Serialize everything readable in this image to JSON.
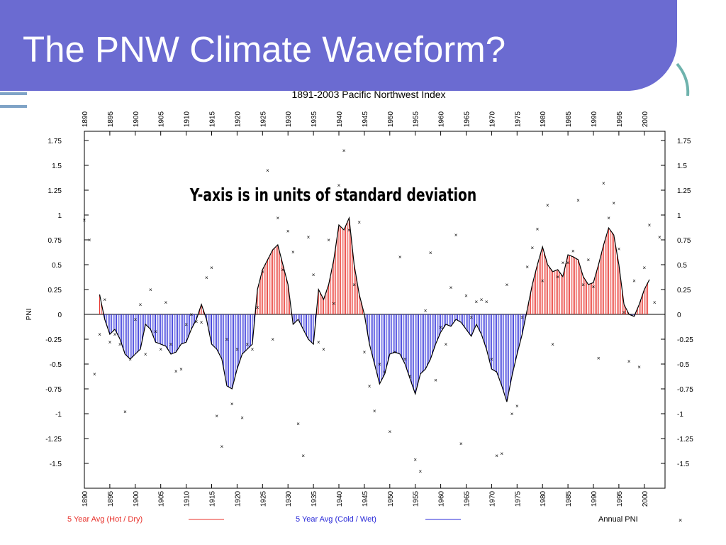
{
  "slide": {
    "title": "The PNW Climate Waveform?"
  },
  "chart_data": {
    "type": "area",
    "title": "1891-2003 Pacific Northwest Index",
    "ylabel": "PNI",
    "annotation": "Y-axis is in units of standard deviation",
    "xlim": [
      1890,
      2003
    ],
    "ylim": [
      -1.75,
      1.75
    ],
    "x_ticks": [
      1890,
      1895,
      1900,
      1905,
      1910,
      1915,
      1920,
      1925,
      1930,
      1935,
      1940,
      1945,
      1950,
      1955,
      1960,
      1965,
      1970,
      1975,
      1980,
      1985,
      1990,
      1995,
      2000
    ],
    "x_tick_labels": [
      "1890",
      "1895",
      "1900",
      "1905",
      "1910",
      "1915",
      "1920",
      "1925",
      "1930",
      "1935",
      "1940",
      "1945",
      "1950",
      "1955",
      "1960",
      "1965",
      "1970",
      "1975",
      "1980",
      "1985",
      "1990",
      "1995",
      "2000"
    ],
    "y_ticks": [
      1.75,
      1.5,
      1.25,
      1,
      0.75,
      0.5,
      0.25,
      0,
      -0.25,
      -0.5,
      -0.75,
      -1,
      -1.25,
      -1.5
    ],
    "y_tick_labels": [
      "1.75",
      "1.5",
      "1.25",
      "1",
      "0.75",
      "0.5",
      "0.25",
      "0",
      "-0.25",
      "-0.5",
      "-0.75",
      "-1",
      "-1.25",
      "-1.5"
    ],
    "legend": {
      "placement": "bottom",
      "hot_label": "5 Year Avg (Hot / Dry)",
      "cold_label": "5 Year Avg (Cold / Wet)",
      "annual_label": "Annual PNI",
      "hot_color": "#e8302a",
      "cold_color": "#2a2ad8"
    },
    "series": [
      {
        "name": "5 Year Avg",
        "x": [
          1893,
          1894,
          1895,
          1896,
          1897,
          1898,
          1899,
          1900,
          1901,
          1902,
          1903,
          1904,
          1905,
          1906,
          1907,
          1908,
          1909,
          1910,
          1911,
          1912,
          1913,
          1914,
          1915,
          1916,
          1917,
          1918,
          1919,
          1920,
          1921,
          1922,
          1923,
          1924,
          1925,
          1926,
          1927,
          1928,
          1929,
          1930,
          1931,
          1932,
          1933,
          1934,
          1935,
          1936,
          1937,
          1938,
          1939,
          1940,
          1941,
          1942,
          1943,
          1944,
          1945,
          1946,
          1947,
          1948,
          1949,
          1950,
          1951,
          1952,
          1953,
          1954,
          1955,
          1956,
          1957,
          1958,
          1959,
          1960,
          1961,
          1962,
          1963,
          1964,
          1965,
          1966,
          1967,
          1968,
          1969,
          1970,
          1971,
          1972,
          1973,
          1974,
          1975,
          1976,
          1977,
          1978,
          1979,
          1980,
          1981,
          1982,
          1983,
          1984,
          1985,
          1986,
          1987,
          1988,
          1989,
          1990,
          1991,
          1992,
          1993,
          1994,
          1995,
          1996,
          1997,
          1998,
          1999,
          2000,
          2001
        ],
        "values": [
          0.2,
          -0.05,
          -0.2,
          -0.15,
          -0.25,
          -0.4,
          -0.45,
          -0.4,
          -0.35,
          -0.1,
          -0.15,
          -0.28,
          -0.3,
          -0.32,
          -0.4,
          -0.38,
          -0.3,
          -0.28,
          -0.15,
          -0.05,
          0.1,
          -0.05,
          -0.3,
          -0.35,
          -0.45,
          -0.72,
          -0.75,
          -0.55,
          -0.4,
          -0.35,
          -0.3,
          0.25,
          0.45,
          0.55,
          0.65,
          0.7,
          0.5,
          0.3,
          -0.1,
          -0.05,
          -0.15,
          -0.25,
          -0.3,
          0.25,
          0.15,
          0.3,
          0.55,
          0.9,
          0.85,
          0.97,
          0.5,
          0.2,
          0,
          -0.3,
          -0.5,
          -0.7,
          -0.6,
          -0.4,
          -0.38,
          -0.4,
          -0.5,
          -0.65,
          -0.8,
          -0.6,
          -0.55,
          -0.45,
          -0.3,
          -0.18,
          -0.1,
          -0.12,
          -0.05,
          -0.08,
          -0.15,
          -0.22,
          -0.1,
          -0.2,
          -0.35,
          -0.55,
          -0.58,
          -0.72,
          -0.88,
          -0.62,
          -0.4,
          -0.2,
          0.05,
          0.3,
          0.5,
          0.68,
          0.5,
          0.43,
          0.45,
          0.38,
          0.6,
          0.58,
          0.55,
          0.38,
          0.3,
          0.32,
          0.5,
          0.7,
          0.87,
          0.8,
          0.5,
          0.1,
          0,
          -0.02,
          0.1,
          0.25,
          0.35
        ]
      },
      {
        "name": "Annual PNI",
        "x": [
          1890,
          1891,
          1892,
          1893,
          1894,
          1895,
          1896,
          1897,
          1898,
          1899,
          1900,
          1901,
          1902,
          1903,
          1904,
          1905,
          1906,
          1907,
          1908,
          1909,
          1910,
          1911,
          1912,
          1913,
          1914,
          1915,
          1916,
          1917,
          1918,
          1919,
          1920,
          1921,
          1922,
          1923,
          1924,
          1925,
          1926,
          1927,
          1928,
          1929,
          1930,
          1931,
          1932,
          1933,
          1934,
          1935,
          1936,
          1937,
          1938,
          1939,
          1940,
          1941,
          1942,
          1943,
          1944,
          1945,
          1946,
          1947,
          1948,
          1949,
          1950,
          1951,
          1952,
          1953,
          1954,
          1955,
          1956,
          1957,
          1958,
          1959,
          1960,
          1961,
          1962,
          1963,
          1964,
          1965,
          1966,
          1967,
          1968,
          1969,
          1970,
          1971,
          1972,
          1973,
          1974,
          1975,
          1976,
          1977,
          1978,
          1979,
          1980,
          1981,
          1982,
          1983,
          1984,
          1985,
          1986,
          1987,
          1988,
          1989,
          1990,
          1991,
          1992,
          1993,
          1994,
          1995,
          1996,
          1997,
          1998,
          1999,
          2000,
          2001,
          2002,
          2003
        ],
        "values": [
          0.95,
          0.75,
          -0.6,
          -0.2,
          0.15,
          -0.28,
          -0.2,
          -0.3,
          -0.98,
          -0.45,
          -0.05,
          0.1,
          -0.4,
          0.25,
          -0.17,
          -0.35,
          0.12,
          -0.3,
          -0.57,
          -0.55,
          -0.1,
          0,
          -0.07,
          -0.08,
          0.37,
          0.47,
          -1.02,
          -1.33,
          -0.25,
          -0.9,
          -0.35,
          -1.04,
          -0.3,
          -0.35,
          0.07,
          0.43,
          1.45,
          -0.25,
          0.97,
          0.45,
          0.84,
          0.63,
          -1.1,
          -1.42,
          0.78,
          0.4,
          -0.28,
          -0.35,
          0.75,
          0.11,
          1.3,
          1.65,
          0.85,
          0.3,
          0.93,
          -0.38,
          -0.72,
          -0.97,
          -0.5,
          -0.58,
          -1.18,
          -0.38,
          0.58,
          -0.45,
          -0.62,
          -1.46,
          -1.58,
          0.04,
          0.62,
          -0.66,
          -0.13,
          -0.3,
          0.27,
          0.8,
          -1.3,
          0.19,
          -0.03,
          0.13,
          0.15,
          0.13,
          -0.45,
          -1.42,
          -1.4,
          0.3,
          -1.0,
          -0.92,
          -0.03,
          0.48,
          0.67,
          0.86,
          0.34,
          1.1,
          -0.3,
          0.38,
          0.52,
          0.52,
          0.64,
          1.15,
          0.3,
          0.55,
          0.28,
          -0.44,
          1.32,
          0.97,
          1.12,
          0.66,
          0.02,
          -0.47,
          0.34,
          -0.53,
          0.47,
          0.9,
          0.12,
          0.78
        ]
      }
    ]
  }
}
